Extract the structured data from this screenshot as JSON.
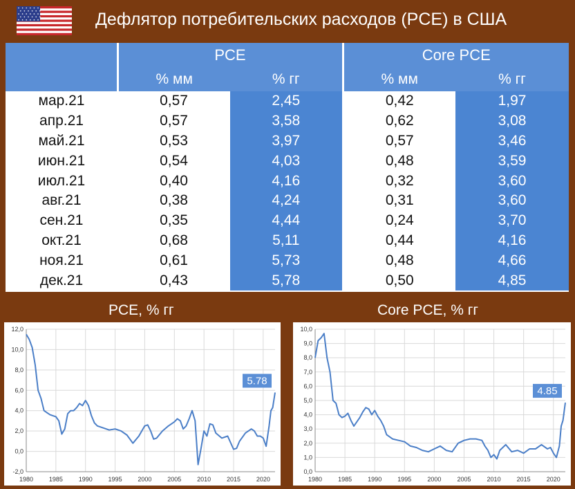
{
  "title": "Дефлятор потребительских расходов (PCE) в США",
  "flag": {
    "icon": "us-flag-icon",
    "colors": {
      "red": "#c8272b",
      "white": "#ffffff",
      "blue": "#2c3e8c"
    }
  },
  "table": {
    "groups": [
      "PCE",
      "Core PCE"
    ],
    "subheaders": [
      "% мм",
      "% гг",
      "% мм",
      "% гг"
    ],
    "rows": [
      {
        "period": "мар.21",
        "pce_mm": "0,57",
        "pce_yy": "2,45",
        "core_mm": "0,42",
        "core_yy": "1,97"
      },
      {
        "period": "апр.21",
        "pce_mm": "0,57",
        "pce_yy": "3,58",
        "core_mm": "0,62",
        "core_yy": "3,08"
      },
      {
        "period": "май.21",
        "pce_mm": "0,53",
        "pce_yy": "3,97",
        "core_mm": "0,57",
        "core_yy": "3,46"
      },
      {
        "period": "июн.21",
        "pce_mm": "0,54",
        "pce_yy": "4,03",
        "core_mm": "0,48",
        "core_yy": "3,59"
      },
      {
        "period": "июл.21",
        "pce_mm": "0,40",
        "pce_yy": "4,16",
        "core_mm": "0,32",
        "core_yy": "3,60"
      },
      {
        "period": "авг.21",
        "pce_mm": "0,38",
        "pce_yy": "4,24",
        "core_mm": "0,31",
        "core_yy": "3,60"
      },
      {
        "period": "сен.21",
        "pce_mm": "0,35",
        "pce_yy": "4,44",
        "core_mm": "0,24",
        "core_yy": "3,70"
      },
      {
        "period": "окт.21",
        "pce_mm": "0,68",
        "pce_yy": "5,11",
        "core_mm": "0,44",
        "core_yy": "4,16"
      },
      {
        "period": "ноя.21",
        "pce_mm": "0,61",
        "pce_yy": "5,73",
        "core_mm": "0,48",
        "core_yy": "4,66"
      },
      {
        "period": "дек.21",
        "pce_mm": "0,43",
        "pce_yy": "5,78",
        "core_mm": "0,50",
        "core_yy": "4,85"
      }
    ]
  },
  "chart_data": [
    {
      "type": "line",
      "title": "PCE, % гг",
      "x_ticks": [
        "1980",
        "1985",
        "1990",
        "1995",
        "2000",
        "2005",
        "2010",
        "2015",
        "2020"
      ],
      "y_ticks": [
        "-2,0",
        "0,0",
        "2,0",
        "4,0",
        "6,0",
        "8,0",
        "10,0",
        "12,0"
      ],
      "ylim": [
        -2,
        12
      ],
      "xlim": [
        1980,
        2022
      ],
      "annotation": "5.78",
      "line_color": "#4a7ec7",
      "x": [
        1980,
        1980.5,
        1981,
        1981.5,
        1982,
        1982.5,
        1983,
        1983.5,
        1984,
        1984.5,
        1985,
        1985.5,
        1986,
        1986.5,
        1987,
        1987.5,
        1988,
        1988.5,
        1989,
        1989.5,
        1990,
        1990.5,
        1991,
        1991.5,
        1992,
        1993,
        1994,
        1995,
        1996,
        1997,
        1998,
        1999,
        2000,
        2000.5,
        2001,
        2001.5,
        2002,
        2003,
        2004,
        2005,
        2005.5,
        2006,
        2006.5,
        2007,
        2007.5,
        2008,
        2008.5,
        2009,
        2009.5,
        2010,
        2010.5,
        2011,
        2011.5,
        2012,
        2013,
        2014,
        2015,
        2015.5,
        2016,
        2017,
        2018,
        2018.5,
        2019,
        2019.5,
        2020,
        2020.5,
        2021,
        2021.3,
        2021.6,
        2022
      ],
      "y": [
        11.5,
        11.0,
        10.2,
        8.5,
        6.0,
        5.2,
        4.0,
        3.8,
        3.6,
        3.5,
        3.4,
        3.0,
        1.7,
        2.2,
        3.7,
        4.0,
        4.0,
        4.3,
        4.7,
        4.5,
        5.0,
        4.5,
        3.5,
        2.8,
        2.5,
        2.3,
        2.1,
        2.2,
        2.0,
        1.6,
        0.8,
        1.5,
        2.5,
        2.6,
        2.0,
        1.2,
        1.3,
        2.0,
        2.5,
        2.9,
        3.2,
        3.0,
        2.2,
        2.5,
        3.2,
        4.0,
        3.0,
        -1.3,
        0.3,
        2.0,
        1.5,
        2.7,
        2.6,
        1.8,
        1.3,
        1.5,
        0.2,
        0.3,
        1.0,
        1.8,
        2.2,
        2.0,
        1.5,
        1.5,
        1.3,
        0.5,
        2.5,
        4.0,
        4.3,
        5.78
      ]
    },
    {
      "type": "line",
      "title": "Core PCE, % гг",
      "x_ticks": [
        "1980",
        "1985",
        "1990",
        "1995",
        "2000",
        "2005",
        "2010",
        "2015",
        "2020"
      ],
      "y_ticks": [
        "0,0",
        "1,0",
        "2,0",
        "3,0",
        "4,0",
        "5,0",
        "6,0",
        "7,0",
        "8,0",
        "9,0",
        "10,0"
      ],
      "ylim": [
        0,
        10
      ],
      "xlim": [
        1980,
        2022
      ],
      "annotation": "4.85",
      "line_color": "#4a7ec7",
      "x": [
        1980,
        1980.5,
        1981,
        1981.5,
        1982,
        1982.5,
        1983,
        1983.5,
        1984,
        1984.5,
        1985,
        1985.5,
        1986,
        1986.5,
        1987,
        1987.5,
        1988,
        1988.5,
        1989,
        1989.5,
        1990,
        1990.5,
        1991,
        1991.5,
        1992,
        1993,
        1994,
        1995,
        1996,
        1997,
        1998,
        1999,
        2000,
        2001,
        2002,
        2003,
        2004,
        2005,
        2006,
        2007,
        2008,
        2008.5,
        2009,
        2009.5,
        2010,
        2010.5,
        2011,
        2012,
        2013,
        2014,
        2015,
        2016,
        2017,
        2018,
        2019,
        2019.5,
        2020,
        2020.5,
        2021,
        2021.3,
        2021.6,
        2022
      ],
      "y": [
        8.0,
        9.2,
        9.4,
        9.7,
        8.0,
        7.0,
        5.0,
        4.8,
        4.0,
        3.8,
        3.9,
        4.1,
        3.6,
        3.2,
        3.5,
        3.8,
        4.2,
        4.5,
        4.4,
        4.0,
        4.3,
        3.9,
        3.6,
        3.2,
        2.6,
        2.3,
        2.2,
        2.1,
        1.8,
        1.7,
        1.5,
        1.4,
        1.6,
        1.8,
        1.5,
        1.4,
        2.0,
        2.2,
        2.3,
        2.3,
        2.2,
        1.8,
        1.5,
        1.0,
        1.2,
        0.9,
        1.5,
        1.9,
        1.4,
        1.5,
        1.3,
        1.6,
        1.6,
        1.9,
        1.6,
        1.7,
        1.3,
        1.0,
        1.8,
        3.2,
        3.6,
        4.85
      ]
    }
  ]
}
